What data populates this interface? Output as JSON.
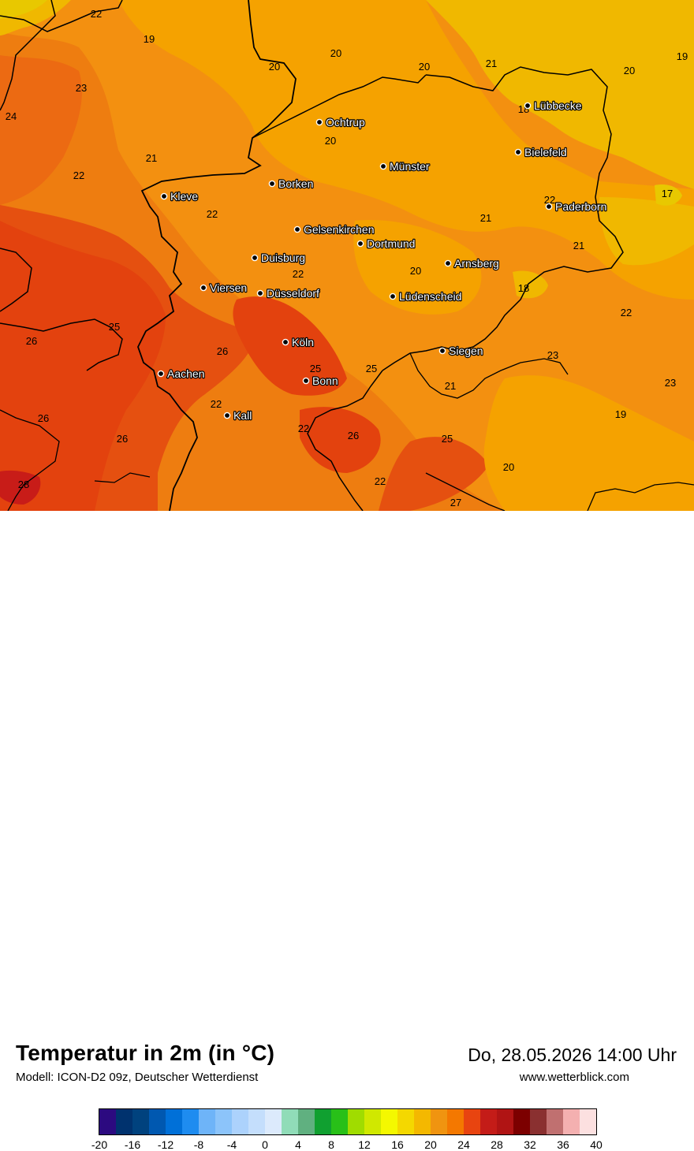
{
  "title": "Temperatur in 2m (in °C)",
  "model": "Modell: ICON-D2 09z, Deutscher Wetterdienst",
  "datetime": "Do, 28.05.2026 14:00 Uhr",
  "website": "www.wetterblick.com",
  "colors": {
    "t17": "#e8c800",
    "t19": "#f0b800",
    "t20": "#f5a200",
    "t21": "#f39010",
    "t22": "#ee7d10",
    "t23": "#ec6a12",
    "t25": "#e55010",
    "t26": "#e3420e",
    "t28": "#c81c18",
    "border": "#000000"
  },
  "legend": {
    "ticks": [
      "-20",
      "-16",
      "-12",
      "-8",
      "-4",
      "0",
      "4",
      "8",
      "12",
      "16",
      "20",
      "24",
      "28",
      "32",
      "36",
      "40"
    ],
    "colors": [
      "#2c0a80",
      "#00326e",
      "#00427e",
      "#0058b0",
      "#0070d8",
      "#1e8cf0",
      "#6eb4f8",
      "#8cc4fa",
      "#acd2fc",
      "#c4defc",
      "#dceafc",
      "#90dcb8",
      "#60b080",
      "#10a030",
      "#28c018",
      "#a0dc00",
      "#d0e800",
      "#f4f800",
      "#f4d800",
      "#f4b800",
      "#f09410",
      "#f47800",
      "#e84410",
      "#c41c18",
      "#b01414",
      "#7c0000",
      "#8a3030",
      "#c07070",
      "#f4b0b0",
      "#fce0e0"
    ]
  },
  "cities": [
    {
      "name": "Lübbecke"
    },
    {
      "name": "Ochtrup"
    },
    {
      "name": "Bielefeld"
    },
    {
      "name": "Münster"
    },
    {
      "name": "Kleve"
    },
    {
      "name": "Borken"
    },
    {
      "name": "Paderborn"
    },
    {
      "name": "Gelsenkirchen"
    },
    {
      "name": "Dortmund"
    },
    {
      "name": "Duisburg"
    },
    {
      "name": "Arnsberg"
    },
    {
      "name": "Viersen"
    },
    {
      "name": "Düsseldorf"
    },
    {
      "name": "Lüdenscheid"
    },
    {
      "name": "Köln"
    },
    {
      "name": "Siegen"
    },
    {
      "name": "Aachen"
    },
    {
      "name": "Bonn"
    },
    {
      "name": "Kall"
    }
  ],
  "temperature_labels": [
    "22",
    "19",
    "20",
    "20",
    "20",
    "21",
    "20",
    "19",
    "23",
    "18",
    "24",
    "20",
    "21",
    "22",
    "22",
    "22",
    "17",
    "21",
    "22",
    "21",
    "20",
    "18",
    "22",
    "25",
    "26",
    "26",
    "26",
    "25",
    "25",
    "23",
    "21",
    "23",
    "22",
    "19",
    "22",
    "26",
    "26",
    "25",
    "28",
    "22",
    "20",
    "27"
  ]
}
